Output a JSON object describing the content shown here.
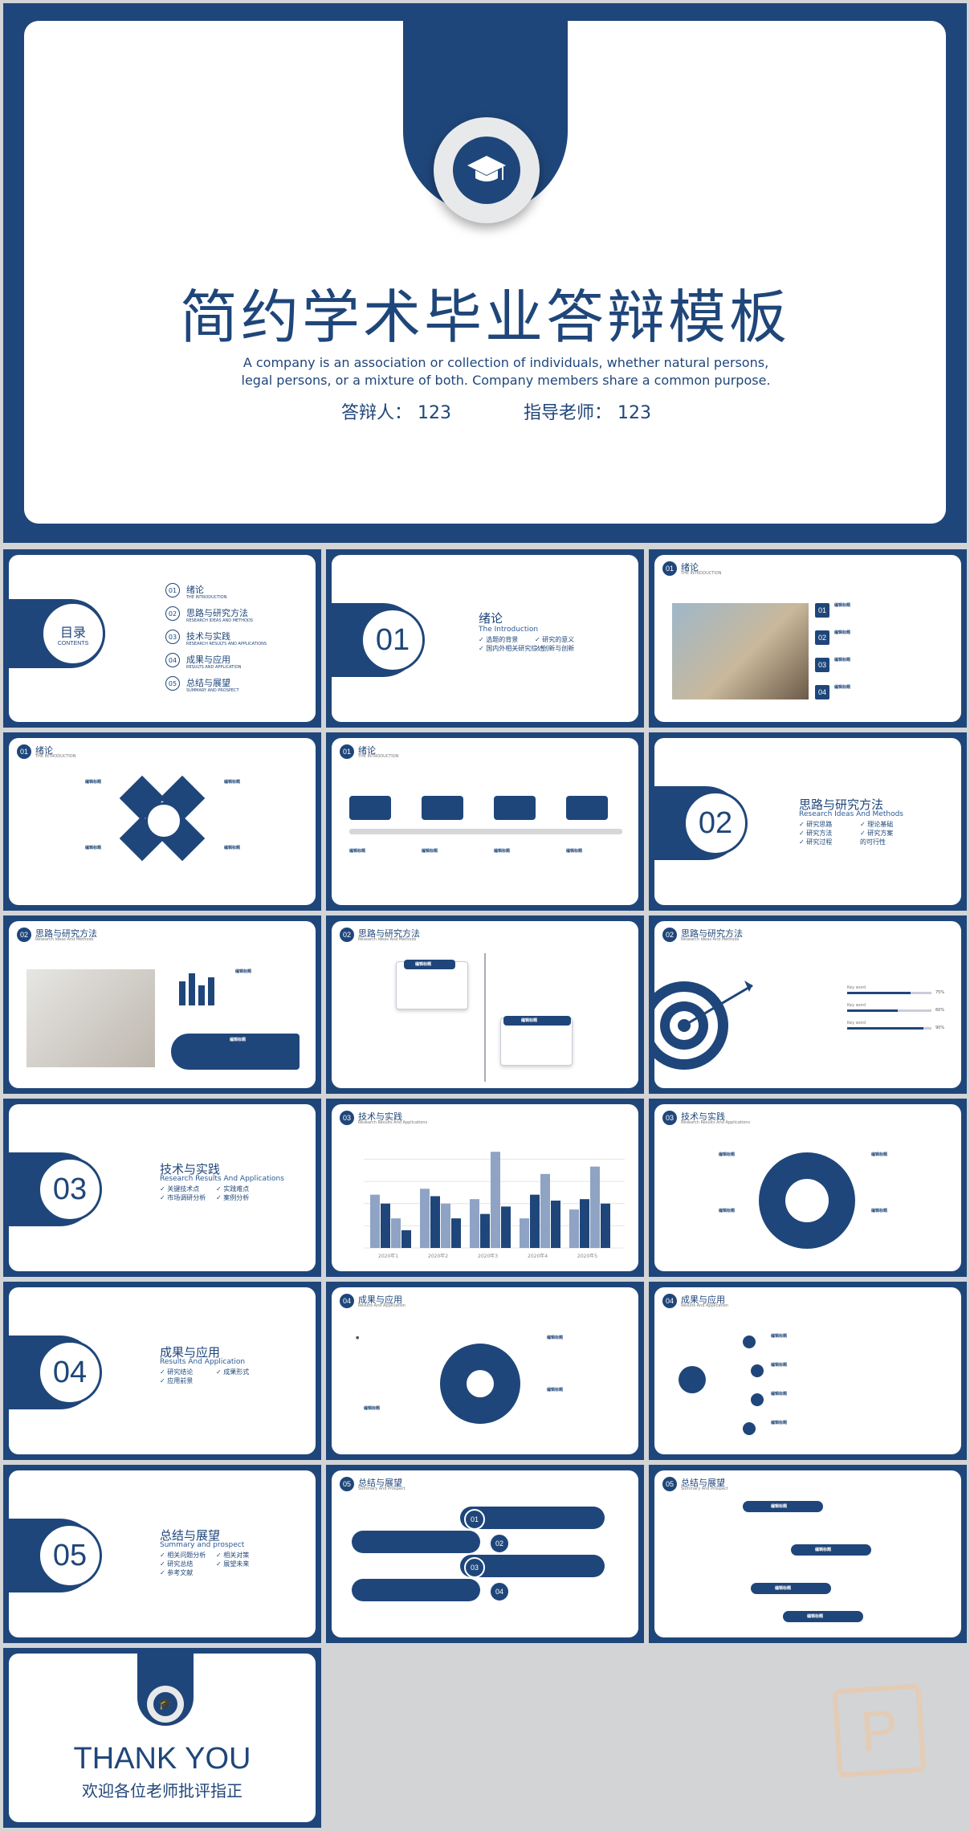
{
  "cover": {
    "title": "简约学术毕业答辩模板",
    "subtitle": "A company is an association or collection of individuals, whether natural persons, legal persons, or a mixture of both. Company members share a common purpose.",
    "presenter": "答辩人：  123",
    "advisor": "指导老师：  123"
  },
  "contents": {
    "label": "目录",
    "label_en": "CONTENTS",
    "items": [
      {
        "num": "01",
        "title": "绪论",
        "en": "THE INTRODUCTION"
      },
      {
        "num": "02",
        "title": "思路与研究方法",
        "en": "RESEARCH IDEAS AND METHODS"
      },
      {
        "num": "03",
        "title": "技术与实践",
        "en": "RESEARCH RESULTS AND APPLICATIONS"
      },
      {
        "num": "04",
        "title": "成果与应用",
        "en": "RESULTS AND APPLICATION"
      },
      {
        "num": "05",
        "title": "总结与展望",
        "en": "SUMMARY AND PROSPECT"
      }
    ]
  },
  "sections": [
    {
      "num": "01",
      "title": "绪论",
      "en": "The Introduction",
      "bullets": [
        "选题的背景",
        "研究的意义",
        "国内外相关研究综述",
        "创新与创新"
      ]
    },
    {
      "num": "02",
      "title": "思路与研究方法",
      "en": "Research Ideas And Methods",
      "bullets": [
        "研究思路",
        "理论基础",
        "研究方法",
        "研究方案",
        "研究过程",
        "的可行性"
      ]
    },
    {
      "num": "03",
      "title": "技术与实践",
      "en": "Research Results And Applications",
      "bullets": [
        "关键技术点",
        "实践难点",
        "市场调研分析",
        "案例分析"
      ]
    },
    {
      "num": "04",
      "title": "成果与应用",
      "en": "Results And Application",
      "bullets": [
        "研究结论",
        "成果形式",
        "应用前景"
      ]
    },
    {
      "num": "05",
      "title": "总结与展望",
      "en": "Summary and prospect",
      "bullets": [
        "相关问题分析",
        "相关对策",
        "研究总结",
        "展望未来",
        "参考文献"
      ]
    }
  ],
  "headers": {
    "intro": {
      "num": "01",
      "title": "绪论",
      "en": "THE INTRODUCTION"
    },
    "ideas": {
      "num": "02",
      "title": "思路与研究方法",
      "en": "Research Ideas And Methods"
    },
    "tech": {
      "num": "03",
      "title": "技术与实践",
      "en": "Research Results And Applications"
    },
    "results": {
      "num": "04",
      "title": "成果与应用",
      "en": "Results And Application"
    },
    "summary": {
      "num": "05",
      "title": "总结与展望",
      "en": "Summary And Prospect"
    }
  },
  "edit_label": "编辑标题",
  "list_nums": [
    "01",
    "02",
    "03",
    "04"
  ],
  "chart_data": {
    "type": "bar",
    "categories": [
      "2020年1",
      "2020年2",
      "2020年3",
      "2020年4",
      "2020年5"
    ],
    "series": [
      {
        "values": [
          36,
          40,
          33,
          20,
          26
        ]
      },
      {
        "values": [
          30,
          35,
          23,
          36,
          33
        ]
      },
      {
        "values": [
          20,
          30,
          65,
          50,
          55
        ]
      },
      {
        "values": [
          12,
          20,
          28,
          32,
          30
        ]
      }
    ]
  },
  "progress": [
    {
      "label": "Key word",
      "pct": "75%"
    },
    {
      "label": "Key word",
      "pct": "60%"
    },
    {
      "label": "Key word",
      "pct": "90%"
    }
  ],
  "thanks": {
    "title": "THANK YOU",
    "subtitle": "欢迎各位老师批评指正"
  },
  "colors": {
    "primary": "#1f467a",
    "background": "#d3d4d6"
  }
}
